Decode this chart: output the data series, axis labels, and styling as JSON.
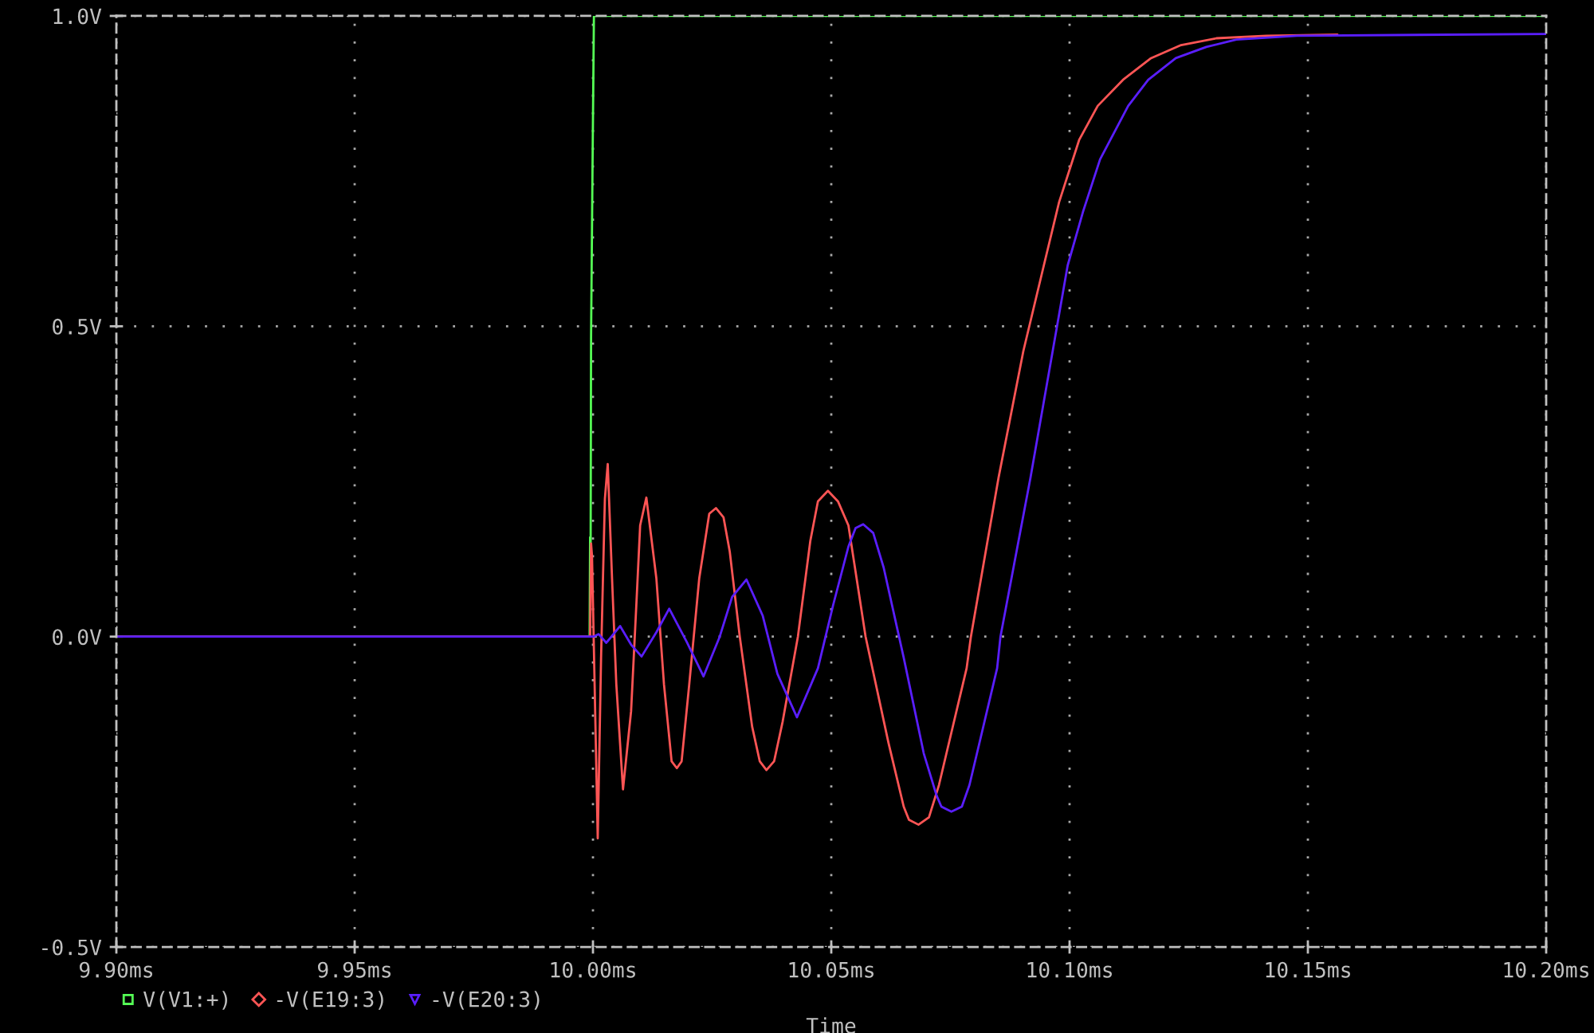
{
  "chart_data": {
    "type": "line",
    "xlabel": "Time",
    "xlim": [
      9.9,
      10.2
    ],
    "xticks": [
      {
        "value": 9.9,
        "label": "9.90ms"
      },
      {
        "value": 9.95,
        "label": "9.95ms"
      },
      {
        "value": 10.0,
        "label": "10.00ms"
      },
      {
        "value": 10.05,
        "label": "10.05ms"
      },
      {
        "value": 10.1,
        "label": "10.10ms"
      },
      {
        "value": 10.15,
        "label": "10.15ms"
      },
      {
        "value": 10.2,
        "label": "10.20ms"
      }
    ],
    "ylim": [
      -0.5,
      1.0
    ],
    "yticks": [
      {
        "value": -0.5,
        "label": "-0.5V"
      },
      {
        "value": 0.0,
        "label": "0.0V"
      },
      {
        "value": 0.5,
        "label": "0.5V"
      },
      {
        "value": 1.0,
        "label": "1.0V"
      }
    ],
    "grid": true,
    "legend": "bottom",
    "series": [
      {
        "name": "V(V1:+)",
        "color": "#55ff55",
        "x": [
          9.9,
          9.9993,
          9.9994,
          9.9995,
          9.9996,
          9.9999,
          10.0002,
          10.2
        ],
        "values": [
          0,
          0,
          0.16,
          0.11,
          0.48,
          0.75,
          1.0,
          1.0
        ]
      },
      {
        "name": "-V(E19:3)",
        "color": "#ff5555",
        "x": [
          9.9,
          9.9994,
          9.9996,
          9.9998,
          10.001,
          10.0017,
          10.0025,
          10.0031,
          10.004,
          10.0049,
          10.0063,
          10.008,
          10.0091,
          10.0099,
          10.0112,
          10.0133,
          10.0149,
          10.0165,
          10.0176,
          10.0186,
          10.0202,
          10.0223,
          10.0244,
          10.0258,
          10.0274,
          10.0287,
          10.0308,
          10.0334,
          10.035,
          10.0364,
          10.038,
          10.0398,
          10.043,
          10.0456,
          10.0472,
          10.0493,
          10.0514,
          10.0536,
          10.0572,
          10.062,
          10.0652,
          10.0663,
          10.0683,
          10.0705,
          10.0726,
          10.0784,
          10.0793,
          10.0851,
          10.0903,
          10.0946,
          10.0978,
          10.102,
          10.1059,
          10.1112,
          10.1171,
          10.1234,
          10.1308,
          10.1413,
          10.1562
        ],
        "values": [
          0,
          0,
          0.15,
          0.13,
          -0.325,
          -0.034,
          0.222,
          0.278,
          0.094,
          -0.077,
          -0.246,
          -0.12,
          0.051,
          0.179,
          0.224,
          0.094,
          -0.077,
          -0.201,
          -0.212,
          -0.201,
          -0.077,
          0.094,
          0.198,
          0.207,
          0.192,
          0.137,
          0,
          -0.145,
          -0.201,
          -0.215,
          -0.201,
          -0.137,
          0,
          0.154,
          0.218,
          0.235,
          0.218,
          0.179,
          0,
          -0.171,
          -0.274,
          -0.295,
          -0.303,
          -0.291,
          -0.239,
          -0.051,
          0,
          0.256,
          0.46,
          0.598,
          0.7,
          0.8,
          0.855,
          0.897,
          0.932,
          0.953,
          0.964,
          0.968,
          0.97
        ]
      },
      {
        "name": "-V(E20:3)",
        "color": "#5a1eff",
        "x": [
          9.9,
          10.0001,
          10.0012,
          10.0028,
          10.0057,
          10.008,
          10.0102,
          10.0133,
          10.016,
          10.0197,
          10.0232,
          10.0266,
          10.0292,
          10.0322,
          10.0356,
          10.0387,
          10.0428,
          10.0472,
          10.0504,
          10.0536,
          10.0551,
          10.0567,
          10.0588,
          10.061,
          10.0652,
          10.0694,
          10.0721,
          10.0731,
          10.0752,
          10.0774,
          10.079,
          10.0848,
          10.0855,
          10.0918,
          10.0965,
          10.0996,
          10.1028,
          10.1064,
          10.1123,
          10.1165,
          10.1223,
          10.1287,
          10.135,
          10.1477,
          10.2
        ],
        "values": [
          0,
          0,
          0.004,
          -0.01,
          0.017,
          -0.013,
          -0.032,
          0.007,
          0.045,
          -0.009,
          -0.064,
          0,
          0.064,
          0.092,
          0.034,
          -0.06,
          -0.13,
          -0.051,
          0.051,
          0.145,
          0.175,
          0.181,
          0.167,
          0.111,
          -0.034,
          -0.188,
          -0.256,
          -0.274,
          -0.282,
          -0.274,
          -0.239,
          -0.051,
          0,
          0.256,
          0.462,
          0.598,
          0.684,
          0.769,
          0.855,
          0.897,
          0.932,
          0.95,
          0.962,
          0.968,
          0.971
        ]
      }
    ]
  }
}
